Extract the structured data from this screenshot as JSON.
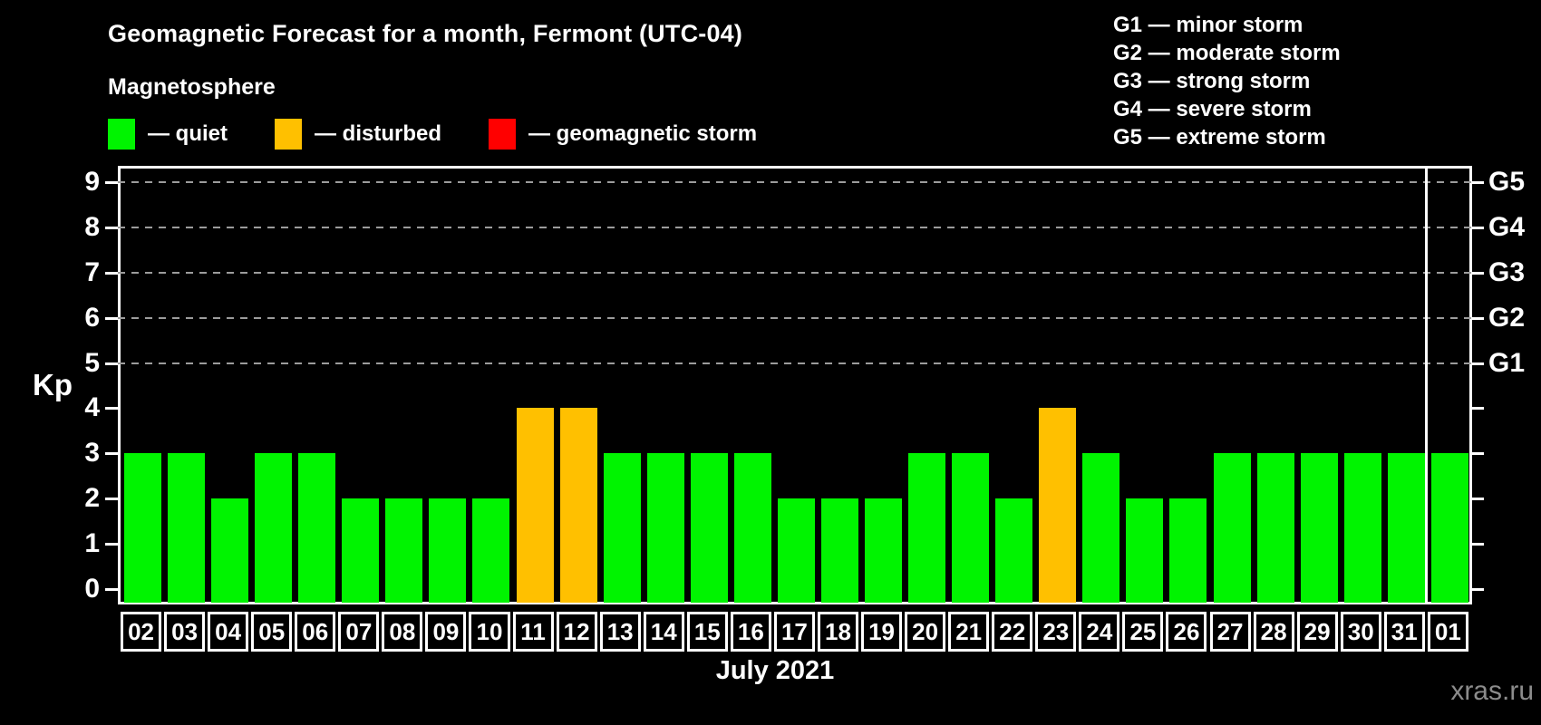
{
  "title": "Geomagnetic Forecast for a month, Fermont (UTC-04)",
  "magnetosphere_legend": {
    "heading": "Magnetosphere",
    "items": [
      {
        "name": "quiet",
        "label": "— quiet",
        "color": "#00f400"
      },
      {
        "name": "disturbed",
        "label": "— disturbed",
        "color": "#ffc000"
      },
      {
        "name": "storm",
        "label": "— geomagnetic storm",
        "color": "#ff0000"
      }
    ]
  },
  "storm_scale_legend": [
    "G1 — minor storm",
    "G2 — moderate storm",
    "G3 — strong storm",
    "G4 — severe storm",
    "G5 — extreme storm"
  ],
  "watermark": "xras.ru",
  "chart_data": {
    "type": "bar",
    "title": "Geomagnetic Forecast for a month, Fermont (UTC-04)",
    "xlabel": "July 2021",
    "ylabel": "Kp",
    "ylim": [
      0,
      9.4
    ],
    "yticks": [
      0,
      1,
      2,
      3,
      4,
      5,
      6,
      7,
      8,
      9
    ],
    "gridlines_at_kp": [
      5,
      6,
      7,
      8,
      9
    ],
    "grid_style": "dashed horizontal lines at Kp 5–9 only",
    "legend_position": "top-left and top-right",
    "right_axis_labels": [
      {
        "kp": 5,
        "label": "G1"
      },
      {
        "kp": 6,
        "label": "G2"
      },
      {
        "kp": 7,
        "label": "G3"
      },
      {
        "kp": 8,
        "label": "G4"
      },
      {
        "kp": 9,
        "label": "G5"
      }
    ],
    "categories": [
      "02",
      "03",
      "04",
      "05",
      "06",
      "07",
      "08",
      "09",
      "10",
      "11",
      "12",
      "13",
      "14",
      "15",
      "16",
      "17",
      "18",
      "19",
      "20",
      "21",
      "22",
      "23",
      "24",
      "25",
      "26",
      "27",
      "28",
      "29",
      "30",
      "31",
      "01"
    ],
    "values": [
      3,
      3,
      2,
      3,
      3,
      2,
      2,
      2,
      2,
      4,
      4,
      3,
      3,
      3,
      3,
      2,
      2,
      2,
      3,
      3,
      2,
      4,
      3,
      2,
      2,
      3,
      3,
      3,
      3,
      3,
      3
    ],
    "statuses": [
      "quiet",
      "quiet",
      "quiet",
      "quiet",
      "quiet",
      "quiet",
      "quiet",
      "quiet",
      "quiet",
      "disturbed",
      "disturbed",
      "quiet",
      "quiet",
      "quiet",
      "quiet",
      "quiet",
      "quiet",
      "quiet",
      "quiet",
      "quiet",
      "quiet",
      "disturbed",
      "quiet",
      "quiet",
      "quiet",
      "quiet",
      "quiet",
      "quiet",
      "quiet",
      "quiet",
      "quiet"
    ],
    "status_colors": {
      "quiet": "#00f400",
      "disturbed": "#ffc000",
      "storm": "#ff0000"
    },
    "month_separator_before_category": "01"
  }
}
